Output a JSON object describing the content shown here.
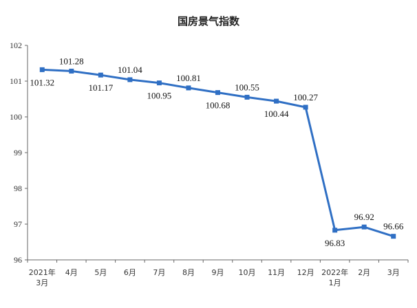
{
  "chart_data": {
    "type": "line",
    "title": "国房景气指数",
    "categories": [
      [
        "2021年",
        "3月"
      ],
      [
        "4月"
      ],
      [
        "5月"
      ],
      [
        "6月"
      ],
      [
        "7月"
      ],
      [
        "8月"
      ],
      [
        "9月"
      ],
      [
        "10月"
      ],
      [
        "11月"
      ],
      [
        "12月"
      ],
      [
        "2022年",
        "1月"
      ],
      [
        "2月"
      ],
      [
        "3月"
      ]
    ],
    "series": [
      {
        "values": [
          101.32,
          101.28,
          101.17,
          101.04,
          100.95,
          100.81,
          100.68,
          100.55,
          100.44,
          100.27,
          96.83,
          96.92,
          96.66
        ],
        "labels": [
          "101.32",
          "101.28",
          "101.17",
          "101.04",
          "100.95",
          "100.81",
          "100.68",
          "100.55",
          "100.44",
          "100.27",
          "96.83",
          "96.92",
          "96.66"
        ],
        "label_positions": [
          "below",
          "above",
          "below",
          "above",
          "below",
          "above",
          "below",
          "above",
          "below",
          "above",
          "below",
          "above",
          "above"
        ],
        "color": "#2f6fc4"
      }
    ],
    "yticks": [
      "96",
      "97",
      "98",
      "99",
      "100",
      "101",
      "102"
    ],
    "ylim": [
      96,
      102
    ],
    "grid": false,
    "legend": "none"
  }
}
